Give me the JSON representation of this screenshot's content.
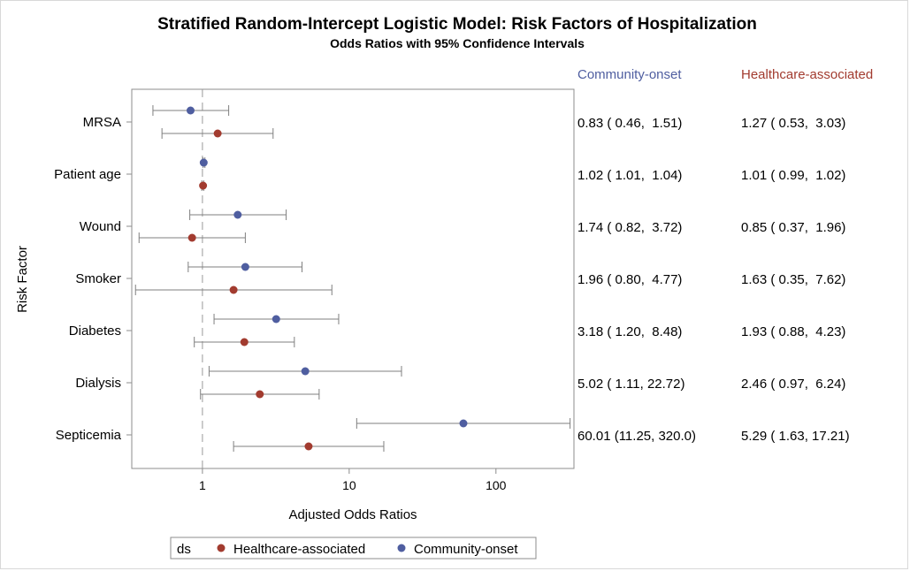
{
  "chart_data": {
    "type": "scatter",
    "title": "Stratified Random-Intercept Logistic Model: Risk Factors of Hospitalization",
    "subtitle": "Odds Ratios with 95% Confidence Intervals",
    "xlabel": "Adjusted Odds Ratios",
    "ylabel": "Risk Factor",
    "x_scale": "log",
    "xlim": [
      0.33,
      340
    ],
    "x_ticks": [
      1,
      10,
      100
    ],
    "x_tick_labels": [
      "1",
      "10",
      "100"
    ],
    "reference_line": 1,
    "categories": [
      "MRSA",
      "Patient age",
      "Wound",
      "Smoker",
      "Diabetes",
      "Dialysis",
      "Septicemia"
    ],
    "series": [
      {
        "name": "Community-onset",
        "color": "#4f5ea0",
        "or": [
          0.83,
          1.02,
          1.74,
          1.96,
          3.18,
          5.02,
          60.01
        ],
        "lower": [
          0.46,
          1.01,
          0.82,
          0.8,
          1.2,
          1.11,
          11.25
        ],
        "upper": [
          1.51,
          1.04,
          3.72,
          4.77,
          8.48,
          22.72,
          320.0
        ],
        "labels": [
          "0.83 ( 0.46,  1.51)",
          "1.02 ( 1.01,  1.04)",
          "1.74 ( 0.82,  3.72)",
          "1.96 ( 0.80,  4.77)",
          "3.18 ( 1.20,  8.48)",
          "5.02 ( 1.11, 22.72)",
          "60.01 (11.25, 320.0)"
        ]
      },
      {
        "name": "Healthcare-associated",
        "color": "#a23b2f",
        "or": [
          1.27,
          1.01,
          0.85,
          1.63,
          1.93,
          2.46,
          5.29
        ],
        "lower": [
          0.53,
          0.99,
          0.37,
          0.35,
          0.88,
          0.97,
          1.63
        ],
        "upper": [
          3.03,
          1.02,
          1.96,
          7.62,
          4.23,
          6.24,
          17.21
        ],
        "labels": [
          "1.27 ( 0.53,  3.03)",
          "1.01 ( 0.99,  1.02)",
          "0.85 ( 0.37,  1.96)",
          "1.63 ( 0.35,  7.62)",
          "1.93 ( 0.88,  4.23)",
          "2.46 ( 0.97,  6.24)",
          "5.29 ( 1.63, 17.21)"
        ]
      }
    ],
    "legend": {
      "title": "ds",
      "position": "bottom",
      "entries": [
        "Healthcare-associated",
        "Community-onset"
      ]
    },
    "grid": false
  }
}
